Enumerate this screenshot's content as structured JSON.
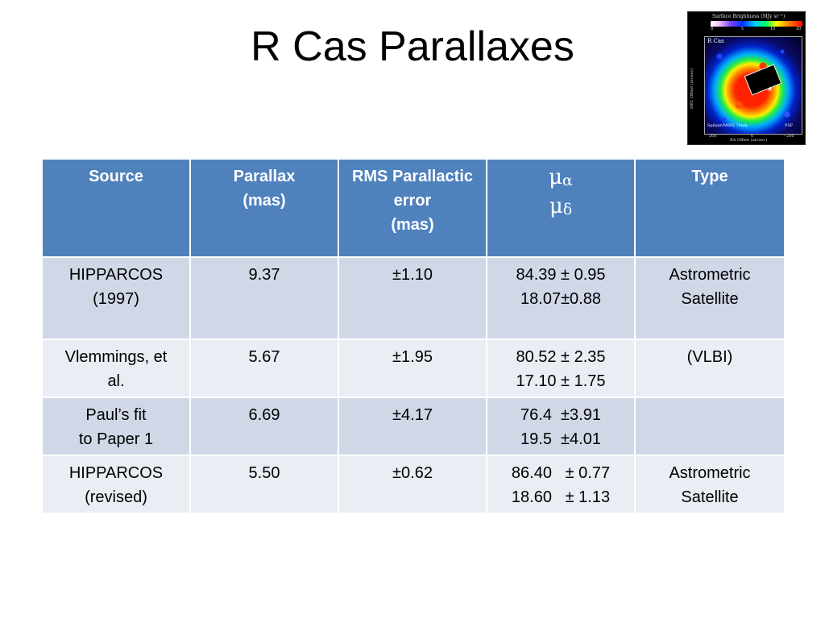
{
  "title": "R Cas Parallaxes",
  "thumbnail": {
    "caption": "Surface Brightness (MJy sr⁻¹)",
    "colorbar_ticks": [
      "0",
      "5",
      "10",
      "20"
    ],
    "object_label": "R Cas",
    "instrument_label": "Spitzer/MIPS 70um",
    "psf_label": "PSF",
    "y_axis_label": "DEC Offset (arcsec)",
    "x_axis_label": "RA Offset (arcsec)",
    "x_ticks": [
      "200",
      "0",
      "−200"
    ]
  },
  "table": {
    "headers": {
      "source": "Source",
      "parallax": [
        "Parallax",
        "(mas)"
      ],
      "rms": [
        "RMS Parallactic",
        "error",
        "(mas)"
      ],
      "mu": {
        "alpha_symbol": "μ",
        "alpha_sub": "α",
        "delta_symbol": "μ",
        "delta_sub": "δ"
      },
      "type": "Type"
    },
    "rows": [
      {
        "source": [
          "HIPPARCOS",
          "(1997)"
        ],
        "parallax": "9.37",
        "rms": "±1.10",
        "mu": [
          "84.39 ± 0.95",
          "18.07±0.88"
        ],
        "type": [
          "Astrometric",
          "Satellite"
        ]
      },
      {
        "source": [
          "Vlemmings, et",
          "al."
        ],
        "parallax": "5.67",
        "rms": "±1.95",
        "mu": [
          "80.52 ± 2.35",
          "17.10 ± 1.75"
        ],
        "type": [
          "(VLBI)"
        ]
      },
      {
        "source": [
          "Paul’s fit",
          "to Paper 1"
        ],
        "parallax": "6.69",
        "rms": "±4.17",
        "mu": [
          "76.4  ±3.91",
          "19.5  ±4.01"
        ],
        "type": []
      },
      {
        "source": [
          "HIPPARCOS",
          "(revised)"
        ],
        "parallax": "5.50",
        "rms": "±0.62",
        "mu": [
          "86.40   ± 0.77",
          "18.60   ± 1.13"
        ],
        "type": [
          "Astrometric",
          "Satellite"
        ]
      }
    ]
  }
}
